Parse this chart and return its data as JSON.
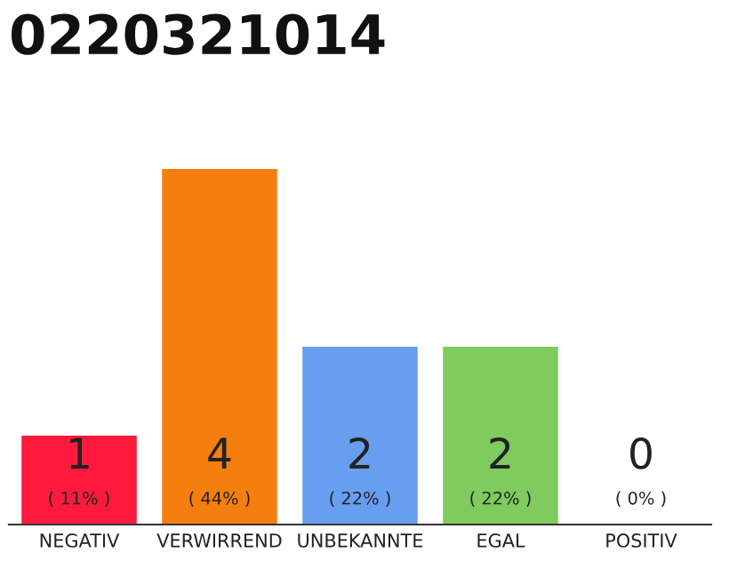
{
  "chart_data": {
    "type": "bar",
    "title": "0220321014",
    "categories": [
      "NEGATIV",
      "VERWIRREND",
      "UNBEKANNTE",
      "EGAL",
      "POSITIV"
    ],
    "values": [
      1,
      4,
      2,
      2,
      0
    ],
    "colors": [
      "#ff1a3d",
      "#f47f0e",
      "#679ef0",
      "#7fcb5e",
      null
    ],
    "value_labels": [
      "1\n( 11% )",
      "4\n( 44% )",
      "2\n( 22% )",
      "2\n( 22% )",
      "0\n( 0% )"
    ],
    "ylim": [
      0,
      4
    ],
    "tick_labels": "x",
    "grid": false,
    "legend": false
  }
}
